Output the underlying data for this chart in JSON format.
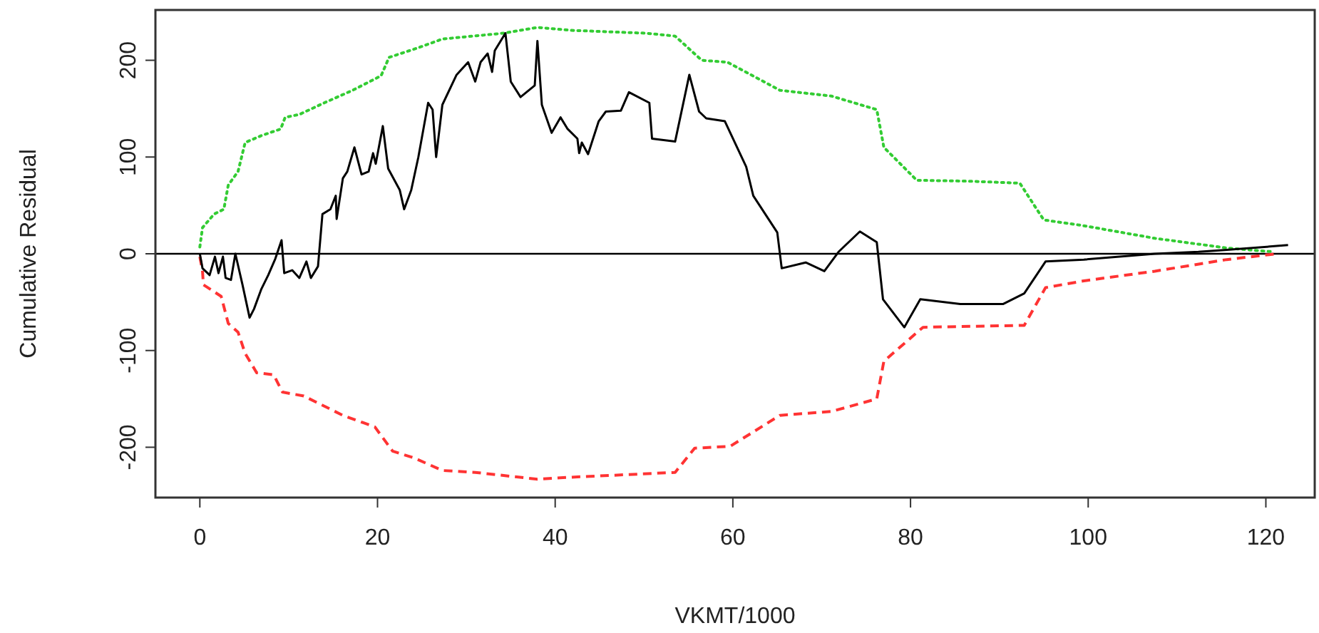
{
  "chart_data": {
    "type": "line",
    "xlabel": "VKMT/1000",
    "ylabel": "Cumulative Residual",
    "xlim": [
      -5,
      125.5
    ],
    "ylim": [
      -252,
      252
    ],
    "xticks": [
      0,
      20,
      40,
      60,
      80,
      100,
      120
    ],
    "yticks": [
      -200,
      -100,
      0,
      100,
      200
    ],
    "grid": false,
    "marker": "none",
    "ref_lines": [
      {
        "axis": "y",
        "value": 0,
        "color": "#000000",
        "line_style": "solid"
      }
    ],
    "series": [
      {
        "color": "#33cc33",
        "line_style": "dotted",
        "x": [
          0,
          0.3,
          1.6,
          2.7,
          3.2,
          4.3,
          5.1,
          6.9,
          9.1,
          9.6,
          11.2,
          14.0,
          17.2,
          20.4,
          21.3,
          24.6,
          27.3,
          34.2,
          38.0,
          41.7,
          50.2,
          53.5,
          56.5,
          59.4,
          65.3,
          71.1,
          76.2,
          77.0,
          80.7,
          86.7,
          92.3,
          95.0,
          99.5,
          107.5,
          115.6,
          120.9
        ],
        "values": [
          7,
          27,
          41,
          46,
          71,
          85,
          115,
          122,
          129,
          141,
          144,
          156,
          169,
          184,
          203,
          213,
          222,
          228,
          234,
          231,
          228,
          225,
          200,
          198,
          169,
          163,
          149,
          110,
          76,
          75,
          73,
          35,
          29,
          16,
          6,
          2
        ]
      },
      {
        "color": "#ff3333",
        "line_style": "dashed",
        "x": [
          0,
          0.3,
          0.4,
          2.4,
          3.2,
          4.3,
          5.1,
          6.4,
          8.3,
          9.3,
          11.7,
          16.1,
          19.7,
          21.7,
          24.1,
          27.3,
          31.0,
          38.0,
          41.7,
          53.5,
          55.7,
          59.7,
          65.3,
          71.1,
          76.2,
          77.0,
          81.4,
          86.7,
          92.8,
          95.2,
          99.5,
          107.5,
          115.6,
          121.2
        ],
        "values": [
          -3,
          -18,
          -32,
          -44,
          -72,
          -81,
          -103,
          -123,
          -125,
          -143,
          -147,
          -167,
          -179,
          -204,
          -211,
          -224,
          -226,
          -233,
          -231,
          -226,
          -201,
          -199,
          -167,
          -163,
          -150,
          -111,
          -76,
          -75,
          -74,
          -35,
          -28,
          -18,
          -6,
          0
        ]
      },
      {
        "color": "#000000",
        "line_style": "solid",
        "x": [
          0,
          0.3,
          1.1,
          1.7,
          2.1,
          2.6,
          2.9,
          3.5,
          4.0,
          4.8,
          5.6,
          6.1,
          6.9,
          7.7,
          8.5,
          9.2,
          9.5,
          10.4,
          11.2,
          12.0,
          12.5,
          13.3,
          13.8,
          14.7,
          15.3,
          15.4,
          16.1,
          16.6,
          17.4,
          18.2,
          19.0,
          19.5,
          19.8,
          20.6,
          21.2,
          22.5,
          23.0,
          23.8,
          24.6,
          25.7,
          26.2,
          26.6,
          27.3,
          28.9,
          30.2,
          31.0,
          31.6,
          32.4,
          32.9,
          33.2,
          34.4,
          35.0,
          36.1,
          37.7,
          38.0,
          38.5,
          39.6,
          40.6,
          41.4,
          42.5,
          42.7,
          43.0,
          43.7,
          44.9,
          45.7,
          47.4,
          48.3,
          50.6,
          50.9,
          53.5,
          55.1,
          56.2,
          57.0,
          59.1,
          61.5,
          62.3,
          65.0,
          65.5,
          68.2,
          70.3,
          71.9,
          74.3,
          76.2,
          76.9,
          79.3,
          81.1,
          85.6,
          90.4,
          92.8,
          95.2,
          99.5,
          107.5,
          112.4,
          115.6,
          122.5
        ],
        "values": [
          0,
          -15,
          -22,
          -3,
          -20,
          -3,
          -25,
          -27,
          0,
          -32,
          -66,
          -57,
          -37,
          -22,
          -5,
          14,
          -20,
          -17,
          -25,
          -8,
          -25,
          -13,
          41,
          46,
          60,
          36,
          78,
          85,
          110,
          82,
          85,
          104,
          93,
          132,
          88,
          66,
          46,
          66,
          100,
          156,
          149,
          100,
          154,
          185,
          198,
          178,
          198,
          207,
          188,
          210,
          228,
          178,
          162,
          174,
          220,
          154,
          125,
          141,
          129,
          119,
          104,
          115,
          103,
          137,
          147,
          148,
          167,
          156,
          119,
          116,
          185,
          147,
          140,
          137,
          90,
          60,
          22,
          -15,
          -9,
          -18,
          2,
          23,
          12,
          -47,
          -76,
          -47,
          -52,
          -52,
          -41,
          -8,
          -6,
          0,
          2,
          4,
          9
        ]
      }
    ]
  }
}
